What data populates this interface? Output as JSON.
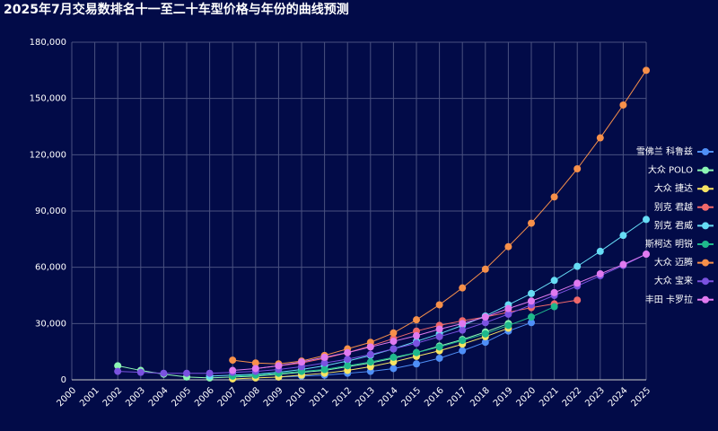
{
  "chart_data": {
    "type": "line",
    "title": "2025年7月交易数排名十一至二十车型价格与年份的曲线预测",
    "categories": [
      "2000",
      "2001",
      "2002",
      "2003",
      "2004",
      "2005",
      "2006",
      "2007",
      "2008",
      "2009",
      "2010",
      "2011",
      "2012",
      "2013",
      "2014",
      "2015",
      "2016",
      "2017",
      "2018",
      "2019",
      "2020",
      "2021",
      "2022",
      "2023",
      "2024",
      "2025"
    ],
    "ylim": [
      0,
      180000
    ],
    "yticks": [
      0,
      {
        "value": 30000,
        "label": "30,000"
      },
      {
        "value": 60000,
        "label": "60,000"
      },
      {
        "value": 90000,
        "label": "90,000"
      },
      {
        "value": 120000,
        "label": "120,000"
      },
      {
        "value": 150000,
        "label": "150,000"
      },
      {
        "value": 180000,
        "label": "180,000"
      }
    ],
    "grid": true,
    "legend": "right",
    "series": [
      {
        "name": "雪佛兰 科鲁兹",
        "color": "#4f8ff7",
        "values": [
          null,
          null,
          null,
          null,
          null,
          null,
          null,
          null,
          null,
          1500,
          2000,
          2500,
          3500,
          4500,
          6000,
          8500,
          11500,
          15500,
          20000,
          26000,
          30500,
          null,
          null,
          null,
          null,
          null
        ]
      },
      {
        "name": "大众 POLO",
        "color": "#8cf7b4",
        "values": [
          null,
          null,
          7500,
          5000,
          3000,
          1500,
          1000,
          1500,
          2000,
          3000,
          4000,
          5000,
          7000,
          9000,
          11500,
          14500,
          18000,
          21500,
          25500,
          30000,
          null,
          null,
          null,
          null,
          null,
          null
        ]
      },
      {
        "name": "大众 捷达",
        "color": "#f7e463",
        "values": [
          null,
          null,
          null,
          null,
          null,
          null,
          null,
          500,
          1000,
          1500,
          2500,
          3500,
          5000,
          7000,
          9500,
          12500,
          15500,
          19000,
          23000,
          27500,
          null,
          null,
          null,
          null,
          null,
          null
        ]
      },
      {
        "name": "别克 君越",
        "color": "#f0686a",
        "values": [
          null,
          null,
          null,
          null,
          null,
          null,
          null,
          null,
          6000,
          7500,
          9000,
          11500,
          14500,
          18000,
          22000,
          26000,
          29000,
          31500,
          33500,
          36000,
          38500,
          40500,
          42500,
          null,
          null,
          null
        ]
      },
      {
        "name": "别克 君威",
        "color": "#66dcf5",
        "values": [
          null,
          null,
          null,
          null,
          null,
          null,
          2000,
          2500,
          3000,
          4000,
          5500,
          7500,
          10000,
          13000,
          16500,
          20500,
          24500,
          29000,
          34000,
          40000,
          46000,
          53000,
          60500,
          68500,
          77000,
          85500
        ]
      },
      {
        "name": "斯柯达 明锐",
        "color": "#1fb98c",
        "values": [
          null,
          null,
          null,
          null,
          null,
          null,
          null,
          2000,
          2500,
          3500,
          4500,
          5500,
          7500,
          9500,
          12000,
          14500,
          17500,
          21000,
          24500,
          29000,
          33500,
          39000,
          null,
          null,
          null,
          null
        ]
      },
      {
        "name": "大众 迈腾",
        "color": "#f7904a",
        "values": [
          null,
          null,
          null,
          null,
          null,
          null,
          null,
          10500,
          9000,
          8500,
          10000,
          13000,
          16500,
          20000,
          25000,
          32000,
          40000,
          49000,
          59000,
          71000,
          83500,
          97500,
          112500,
          129000,
          146500,
          165000
        ]
      },
      {
        "name": "大众 宝来",
        "color": "#7a52e0",
        "values": [
          null,
          null,
          4500,
          4000,
          3500,
          3500,
          3500,
          4000,
          4500,
          5500,
          7000,
          9000,
          11000,
          13500,
          16500,
          19500,
          23000,
          26500,
          30500,
          35000,
          40000,
          45000,
          50000,
          55500,
          61000,
          67000
        ]
      },
      {
        "name": "丰田 卡罗拉",
        "color": "#e07af0",
        "values": [
          null,
          null,
          null,
          null,
          null,
          null,
          null,
          5000,
          6000,
          7500,
          9500,
          12000,
          14500,
          17500,
          20500,
          23500,
          27000,
          30000,
          33500,
          38000,
          42000,
          46500,
          51500,
          56500,
          61500,
          67000
        ]
      }
    ]
  }
}
